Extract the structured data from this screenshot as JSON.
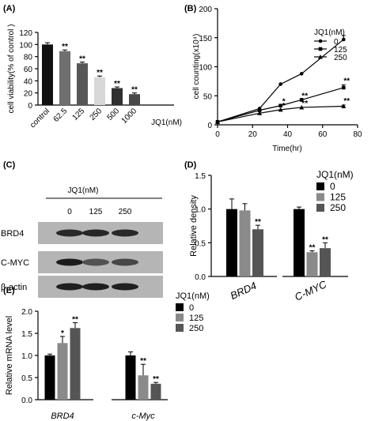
{
  "chart_data": [
    {
      "panel": "(A)",
      "type": "bar",
      "categories": [
        "control",
        "62.5",
        "125",
        "250",
        "500",
        "1000"
      ],
      "values": [
        100,
        89,
        69,
        46,
        28,
        18
      ],
      "errors": [
        3,
        2,
        2,
        2,
        2,
        2
      ],
      "significance": [
        "",
        "**",
        "**",
        "**",
        "**",
        "**"
      ],
      "colors": [
        "#111111",
        "#6f6f6f",
        "#575757",
        "#d8d8d8",
        "#303030",
        "#484848"
      ],
      "xlabel": "JQ1(nM)",
      "ylabel": "cell viability(% of control )",
      "yticks": [
        0,
        20,
        40,
        60,
        80,
        100,
        120
      ],
      "ylim": [
        0,
        120
      ]
    },
    {
      "panel": "(B)",
      "type": "line",
      "xlabel": "Time(hr)",
      "ylabel": "cell counting(x10⁴)",
      "xticks": [
        0,
        20,
        40,
        60,
        80
      ],
      "yticks": [
        0,
        50,
        100,
        150,
        200
      ],
      "xlim": [
        0,
        80
      ],
      "ylim": [
        0,
        200
      ],
      "legend_title": "JQ1(nM)",
      "series": [
        {
          "name": "0",
          "marker": "circle",
          "x": [
            0,
            24,
            36,
            48,
            72
          ],
          "y": [
            5,
            28,
            70,
            88,
            147
          ],
          "err": [
            0,
            0,
            0,
            0,
            7
          ],
          "sig": [
            "",
            "",
            "",
            "",
            ""
          ]
        },
        {
          "name": "125",
          "marker": "square",
          "x": [
            0,
            24,
            36,
            48,
            72
          ],
          "y": [
            5,
            25,
            33,
            43,
            64
          ],
          "err": [
            0,
            0,
            0,
            0,
            5
          ],
          "sig": [
            "",
            "",
            "*",
            "**",
            "**"
          ]
        },
        {
          "name": "250",
          "marker": "triangle",
          "x": [
            0,
            24,
            36,
            48,
            72
          ],
          "y": [
            5,
            20,
            26,
            30,
            32
          ],
          "err": [
            0,
            0,
            0,
            0,
            2
          ],
          "sig": [
            "",
            "",
            "*",
            "**",
            "**"
          ]
        }
      ]
    },
    {
      "panel": "(D)",
      "type": "bar",
      "categories": [
        "BRD4",
        "C-MYC"
      ],
      "ylabel": "Relative density",
      "yticks": [
        "0.0",
        "0.5",
        "1.0",
        "1.5"
      ],
      "ylim": [
        0,
        1.5
      ],
      "legend_title": "JQ1(nM)",
      "series": [
        {
          "name": "0",
          "color": "#000000",
          "values": [
            1.0,
            1.0
          ],
          "err": [
            0.15,
            0.03
          ],
          "sig": [
            "",
            ""
          ]
        },
        {
          "name": "125",
          "color": "#8a8a8a",
          "values": [
            0.98,
            0.36
          ],
          "err": [
            0.1,
            0.02
          ],
          "sig": [
            "",
            "**"
          ]
        },
        {
          "name": "250",
          "color": "#555555",
          "values": [
            0.7,
            0.42
          ],
          "err": [
            0.06,
            0.08
          ],
          "sig": [
            "**",
            "**"
          ]
        }
      ]
    },
    {
      "panel": "(E)",
      "type": "bar",
      "categories": [
        "BRD4",
        "c-Myc"
      ],
      "ylabel": "Relative mRNA level",
      "yticks": [
        "0.0",
        "0.5",
        "1.0",
        "1.5",
        "2.0"
      ],
      "ylim": [
        0,
        2.0
      ],
      "legend_title": "JQ1(nM)",
      "series": [
        {
          "name": "0",
          "color": "#000000",
          "values": [
            1.0,
            1.0
          ],
          "err": [
            0.03,
            0.08
          ],
          "sig": [
            "",
            ""
          ]
        },
        {
          "name": "125",
          "color": "#8a8a8a",
          "values": [
            1.28,
            0.55
          ],
          "err": [
            0.15,
            0.25
          ],
          "sig": [
            "*",
            "**"
          ]
        },
        {
          "name": "250",
          "color": "#555555",
          "values": [
            1.62,
            0.36
          ],
          "err": [
            0.12,
            0.03
          ],
          "sig": [
            "**",
            "**"
          ]
        }
      ]
    }
  ],
  "western_blot": {
    "panel": "(C)",
    "treatment_label": "JQ1(nM)",
    "lanes": [
      "0",
      "125",
      "250"
    ],
    "rows": [
      {
        "label": "BRD4",
        "intensities": [
          0.72,
          0.75,
          0.72
        ]
      },
      {
        "label": "C-MYC",
        "intensities": [
          0.85,
          0.35,
          0.45
        ]
      },
      {
        "label": "β-actin",
        "intensities": [
          0.8,
          0.8,
          0.8
        ]
      }
    ]
  }
}
